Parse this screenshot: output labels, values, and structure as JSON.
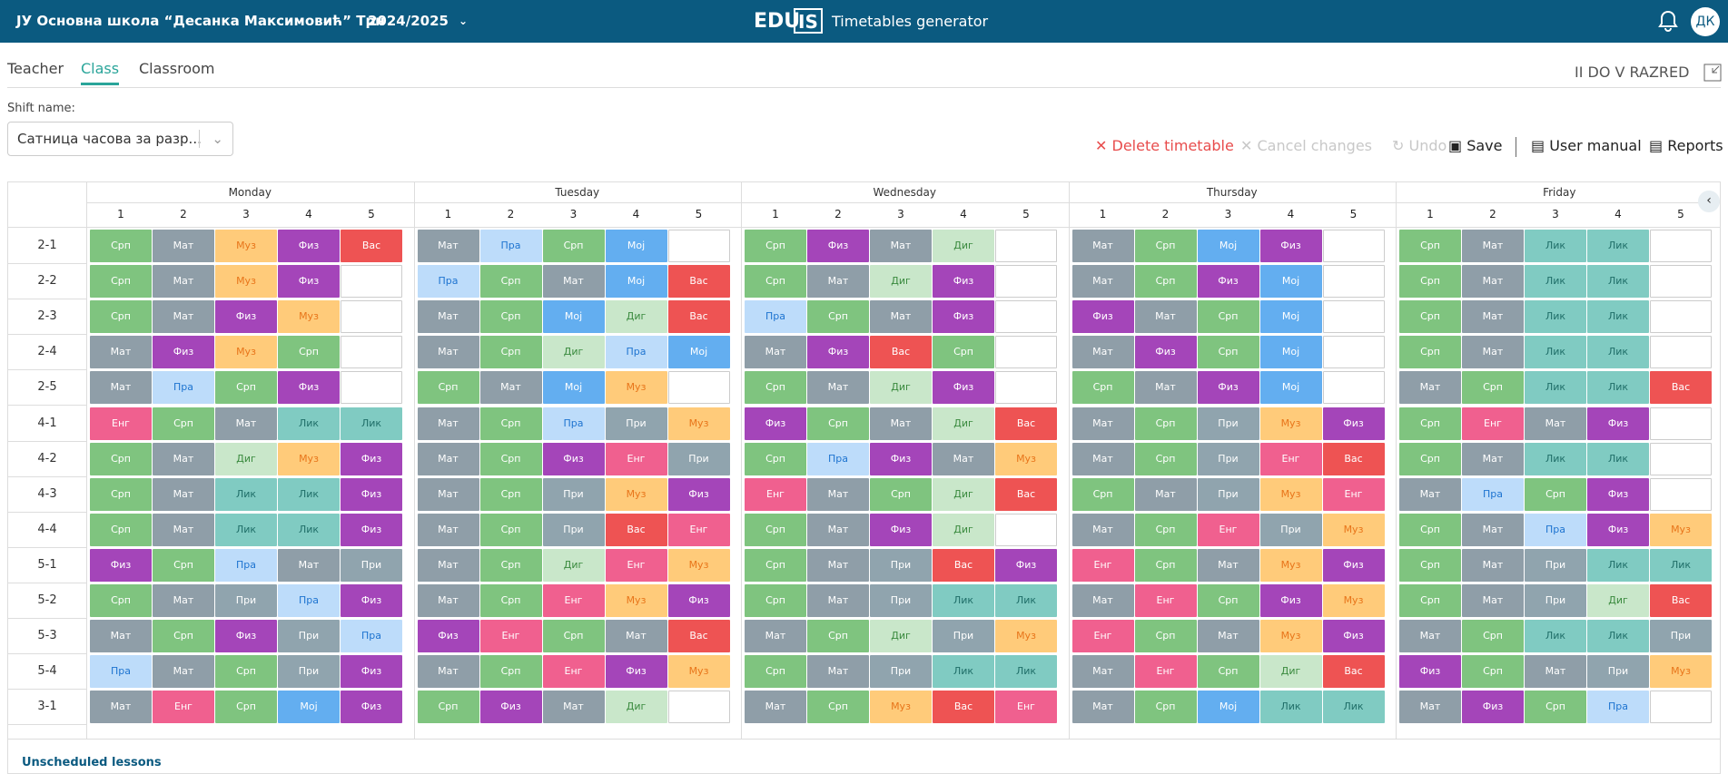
{
  "header": {
    "school": "ЈУ Основна школа “Десанка Максимовић” Трн",
    "year": "2024/2025",
    "logo_left": "EDU",
    "logo_right": "IS",
    "app_title": "Timetables generator",
    "avatar": "ДК"
  },
  "tabs": {
    "items": [
      "Teacher",
      "Class",
      "Classroom"
    ],
    "active": 1,
    "selection": "II DO V RAZRED"
  },
  "shift": {
    "label": "Shift name:",
    "value": "Сатница часова за разр..."
  },
  "toolbar": [
    "Delete timetable",
    "Cancel changes",
    "Undo",
    "Save",
    "User manual",
    "Reports"
  ],
  "grid": {
    "days": [
      {
        "name": "Monday",
        "periods": [
          1,
          2,
          3,
          4,
          5
        ]
      },
      {
        "name": "Tuesday",
        "periods": [
          1,
          2,
          3,
          4,
          5
        ]
      },
      {
        "name": "Wednesday",
        "periods": [
          1,
          2,
          3,
          4,
          5
        ]
      },
      {
        "name": "Thursday",
        "periods": [
          1,
          2,
          3,
          4,
          5
        ]
      },
      {
        "name": "Friday",
        "periods": [
          1,
          2,
          3,
          4,
          5
        ]
      }
    ],
    "subject_styles": {
      "Срп": [
        "#7fc47f",
        "#ffffff"
      ],
      "Мат": [
        "#8f9ea8",
        "#ffffff"
      ],
      "Муз": [
        "#ffcb7a",
        "#e8751a"
      ],
      "Физ": [
        "#a445b9",
        "#ffffff"
      ],
      "Вас": [
        "#ee5353",
        "#ffffff"
      ],
      "Пра": [
        "#bddcfa",
        "#1e74d0"
      ],
      "Мој": [
        "#63aef0",
        "#ffffff"
      ],
      "Диг": [
        "#c9e7ca",
        "#3a8a3e"
      ],
      "Лик": [
        "#80cbc2",
        "#1f6e68"
      ],
      "Енг": [
        "#f0608f",
        "#ffffff"
      ],
      "При": [
        "#90a4ae",
        "#ffffff"
      ]
    },
    "rows": [
      {
        "label": "2-1",
        "cells": [
          "Срп",
          "Мат",
          "Муз",
          "Физ",
          "Вас",
          "Мат",
          "Пра",
          "Срп",
          "Мој",
          null,
          "Срп",
          "Физ",
          "Мат",
          "Диг",
          null,
          "Мат",
          "Срп",
          "Мој",
          "Физ",
          null,
          "Срп",
          "Мат",
          "Лик",
          "Лик",
          null
        ]
      },
      {
        "label": "2-2",
        "cells": [
          "Срп",
          "Мат",
          "Муз",
          "Физ",
          null,
          "Пра",
          "Срп",
          "Мат",
          "Мој",
          "Вас",
          "Срп",
          "Мат",
          "Диг",
          "Физ",
          null,
          "Мат",
          "Срп",
          "Физ",
          "Мој",
          null,
          "Срп",
          "Мат",
          "Лик",
          "Лик",
          null
        ]
      },
      {
        "label": "2-3",
        "cells": [
          "Срп",
          "Мат",
          "Физ",
          "Муз",
          null,
          "Мат",
          "Срп",
          "Мој",
          "Диг",
          "Вас",
          "Пра",
          "Срп",
          "Мат",
          "Физ",
          null,
          "Физ",
          "Мат",
          "Срп",
          "Мој",
          null,
          "Срп",
          "Мат",
          "Лик",
          "Лик",
          null
        ]
      },
      {
        "label": "2-4",
        "cells": [
          "Мат",
          "Физ",
          "Муз",
          "Срп",
          null,
          "Мат",
          "Срп",
          "Диг",
          "Пра",
          "Мој",
          "Мат",
          "Физ",
          "Вас",
          "Срп",
          null,
          "Мат",
          "Физ",
          "Срп",
          "Мој",
          null,
          "Срп",
          "Мат",
          "Лик",
          "Лик",
          null
        ]
      },
      {
        "label": "2-5",
        "cells": [
          "Мат",
          "Пра",
          "Срп",
          "Физ",
          null,
          "Срп",
          "Мат",
          "Мој",
          "Муз",
          null,
          "Срп",
          "Мат",
          "Диг",
          "Физ",
          null,
          "Срп",
          "Мат",
          "Физ",
          "Мој",
          null,
          "Мат",
          "Срп",
          "Лик",
          "Лик",
          "Вас"
        ]
      },
      {
        "label": "4-1",
        "cells": [
          "Енг",
          "Срп",
          "Мат",
          "Лик",
          "Лик",
          "Мат",
          "Срп",
          "Пра",
          "При",
          "Муз",
          "Физ",
          "Срп",
          "Мат",
          "Диг",
          "Вас",
          "Мат",
          "Срп",
          "При",
          "Муз",
          "Физ",
          "Срп",
          "Енг",
          "Мат",
          "Физ",
          null
        ]
      },
      {
        "label": "4-2",
        "cells": [
          "Срп",
          "Мат",
          "Диг",
          "Муз",
          "Физ",
          "Мат",
          "Срп",
          "Физ",
          "Енг",
          "При",
          "Срп",
          "Пра",
          "Физ",
          "Мат",
          "Муз",
          "Мат",
          "Срп",
          "При",
          "Енг",
          "Вас",
          "Срп",
          "Мат",
          "Лик",
          "Лик",
          null
        ]
      },
      {
        "label": "4-3",
        "cells": [
          "Срп",
          "Мат",
          "Лик",
          "Лик",
          "Физ",
          "Мат",
          "Срп",
          "При",
          "Муз",
          "Физ",
          "Енг",
          "Мат",
          "Срп",
          "Диг",
          "Вас",
          "Срп",
          "Мат",
          "При",
          "Муз",
          "Енг",
          "Мат",
          "Пра",
          "Срп",
          "Физ",
          null
        ]
      },
      {
        "label": "4-4",
        "cells": [
          "Срп",
          "Мат",
          "Лик",
          "Лик",
          "Физ",
          "Мат",
          "Срп",
          "При",
          "Вас",
          "Енг",
          "Срп",
          "Мат",
          "Физ",
          "Диг",
          null,
          "Мат",
          "Срп",
          "Енг",
          "При",
          "Муз",
          "Срп",
          "Мат",
          "Пра",
          "Физ",
          "Муз"
        ]
      },
      {
        "label": "5-1",
        "cells": [
          "Физ",
          "Срп",
          "Пра",
          "Мат",
          "При",
          "Мат",
          "Срп",
          "Диг",
          "Енг",
          "Муз",
          "Срп",
          "Мат",
          "При",
          "Вас",
          "Физ",
          "Енг",
          "Срп",
          "Мат",
          "Муз",
          "Физ",
          "Срп",
          "Мат",
          "При",
          "Лик",
          "Лик"
        ]
      },
      {
        "label": "5-2",
        "cells": [
          "Срп",
          "Мат",
          "При",
          "Пра",
          "Физ",
          "Мат",
          "Срп",
          "Енг",
          "Муз",
          "Физ",
          "Срп",
          "Мат",
          "При",
          "Лик",
          "Лик",
          "Мат",
          "Енг",
          "Срп",
          "Физ",
          "Муз",
          "Срп",
          "Мат",
          "При",
          "Диг",
          "Вас"
        ]
      },
      {
        "label": "5-3",
        "cells": [
          "Мат",
          "Срп",
          "Физ",
          "При",
          "Пра",
          "Физ",
          "Енг",
          "Срп",
          "Мат",
          "Вас",
          "Мат",
          "Срп",
          "Диг",
          "При",
          "Муз",
          "Енг",
          "Срп",
          "Мат",
          "Муз",
          "Физ",
          "Мат",
          "Срп",
          "Лик",
          "Лик",
          "При"
        ]
      },
      {
        "label": "5-4",
        "cells": [
          "Пра",
          "Мат",
          "Срп",
          "При",
          "Физ",
          "Мат",
          "Срп",
          "Енг",
          "Физ",
          "Муз",
          "Срп",
          "Мат",
          "При",
          "Лик",
          "Лик",
          "Мат",
          "Енг",
          "Срп",
          "Диг",
          "Вас",
          "Физ",
          "Срп",
          "Мат",
          "При",
          "Муз"
        ]
      },
      {
        "label": "3-1",
        "cells": [
          "Мат",
          "Енг",
          "Срп",
          "Мој",
          "Физ",
          "Срп",
          "Физ",
          "Мат",
          "Диг",
          null,
          "Мат",
          "Срп",
          "Муз",
          "Вас",
          "Енг",
          "Мат",
          "Срп",
          "Мој",
          "Лик",
          "Лик",
          "Мат",
          "Физ",
          "Срп",
          "Пра",
          null
        ]
      }
    ]
  },
  "footer": {
    "unscheduled": "Unscheduled lessons"
  }
}
